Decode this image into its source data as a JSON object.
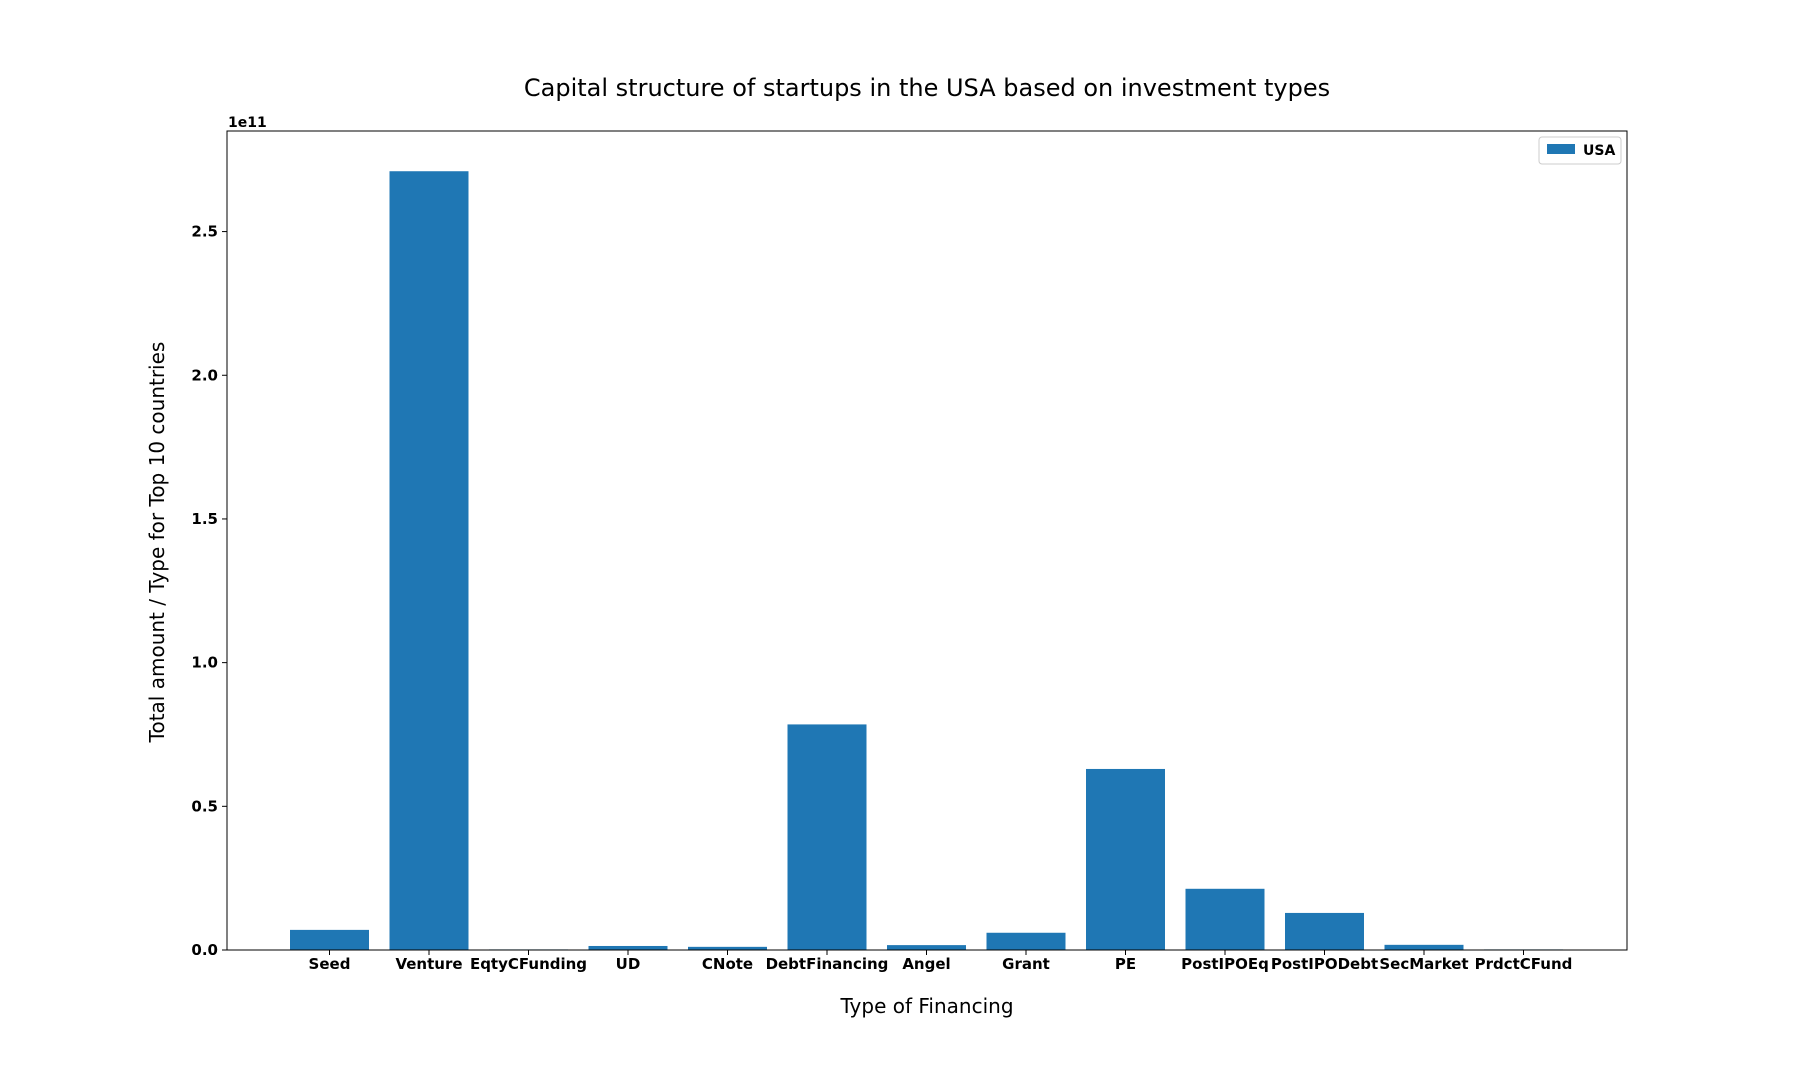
{
  "chart_data": {
    "type": "bar",
    "title": "Capital structure of startups in the USA based on investment types",
    "xlabel": "Type of Financing",
    "ylabel": "Total amount / Type for Top 10 countries",
    "categories": [
      "Seed",
      "Venture",
      "EqtyCFunding",
      "UD",
      "CNote",
      "DebtFinancing",
      "Angel",
      "Grant",
      "PE",
      "PostIPOEq",
      "PostIPODebt",
      "SecMarket",
      "PrdctCFund"
    ],
    "series": [
      {
        "name": "USA",
        "color": "#1f77b4",
        "values": [
          7000000000,
          271000000000,
          200000000,
          1400000000,
          1100000000,
          78500000000,
          1700000000,
          6000000000,
          63000000000,
          21300000000,
          12900000000,
          1800000000,
          200000000
        ]
      }
    ],
    "ylim": [
      0,
      285000000000
    ],
    "yticks": [
      0,
      50000000000,
      100000000000,
      150000000000,
      200000000000,
      250000000000
    ],
    "ytick_labels": [
      "0.0",
      "0.5",
      "1.0",
      "1.5",
      "2.0",
      "2.5"
    ],
    "y_offset_label": "1e11",
    "legend": {
      "position": "top-right"
    },
    "grid": false
  }
}
